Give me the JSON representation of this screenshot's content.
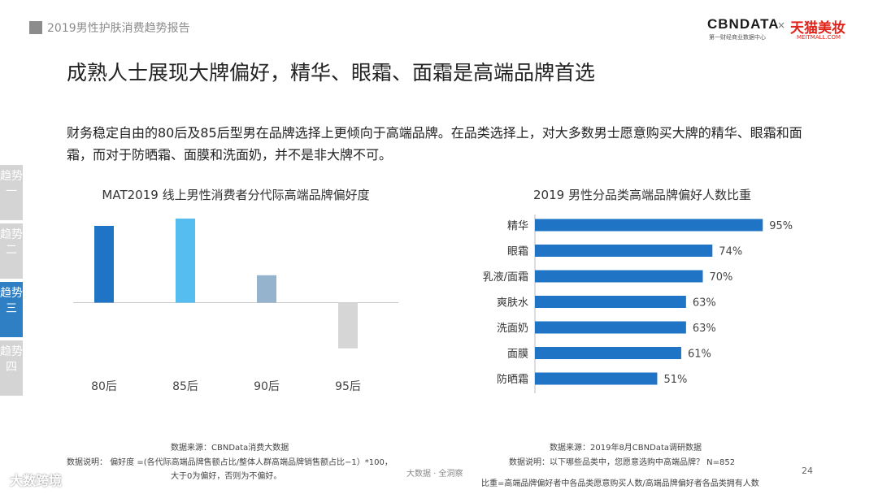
{
  "header": {
    "report_title": "2019男性护肤消费趋势报告",
    "logo_cbndata": "CBNDATA",
    "logo_cbndata_sub": "第一财经商业数据中心",
    "logo_x": "×",
    "logo_tmall": "天猫美妆",
    "logo_tmall_sub": "MEITMALL.COM"
  },
  "main_title": "成熟人士展现大牌偏好，精华、眼霜、面霜是高端品牌首选",
  "summary": "财务稳定自由的80后及85后型男在品牌选择上更倾向于高端品牌。在品类选择上，对大多数男士愿意购买大牌的精华、眼霜和面霜，而对于防晒霜、面膜和洗面奶，并不是非大牌不可。",
  "side_nav": [
    {
      "label": "趋势一",
      "active": false
    },
    {
      "label": "趋势二",
      "active": false
    },
    {
      "label": "趋势三",
      "active": true
    },
    {
      "label": "趋势四",
      "active": false
    }
  ],
  "left_notes": {
    "source": "数据来源：CBNData消费大数据",
    "note_line1": "数据说明：  偏好度 =(各代际高端品牌售额占比/整体人群高端品牌销售额占比−1）*100，",
    "note_line2": "大于0为偏好，否则为不偏好。"
  },
  "right_notes": {
    "source": "数据来源：2019年8月CBNData调研数据",
    "note_line1": "数据说明：以下哪些品类中，您愿意选购中高端品牌？  N=852",
    "note_line2": "比重=高端品牌偏好者中各品类愿意购买人数/高端品牌偏好者各品类拥有人数"
  },
  "footer": {
    "page_number": "24",
    "watermark_logo": "大数跨境",
    "center_watermark": "大数据 · 全洞察"
  },
  "chart_data": [
    {
      "type": "bar",
      "title": "MAT2019 线上男性消费者分代际高端品牌偏好度",
      "categories": [
        "80后",
        "85后",
        "90后",
        "95后"
      ],
      "values": [
        42,
        46,
        15,
        -25
      ],
      "colors": [
        "#1f74c5",
        "#55bdf0",
        "#95b3cc",
        "#d6d6d6"
      ],
      "ylim": [
        -30,
        50
      ],
      "grid": false
    },
    {
      "type": "bar",
      "orientation": "horizontal",
      "title": "2019 男性分品类高端品牌偏好人数比重",
      "categories": [
        "精华",
        "眼霜",
        "乳液/面霜",
        "爽肤水",
        "洗面奶",
        "面膜",
        "防晒霜"
      ],
      "values": [
        95,
        74,
        70,
        63,
        63,
        61,
        51
      ],
      "value_labels": [
        "95%",
        "74%",
        "70%",
        "63%",
        "63%",
        "61%",
        "51%"
      ],
      "color": "#1f74c5",
      "xlim": [
        0,
        100
      ],
      "grid": false
    }
  ]
}
